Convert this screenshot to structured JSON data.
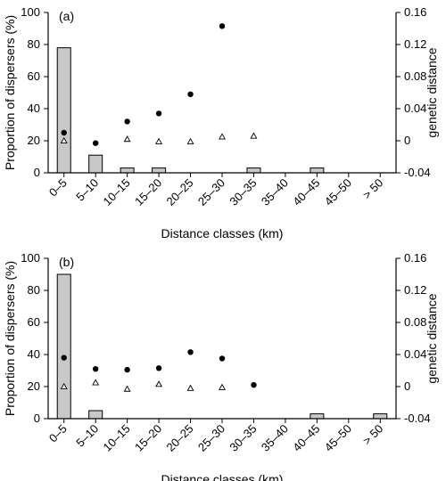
{
  "chart_data": [
    {
      "type": "bar",
      "panel_label": "(a)",
      "categories": [
        "0–5",
        "5–10",
        "10–15",
        "15–20",
        "20–25",
        "25–30",
        "30–35",
        "35–40",
        "40–45",
        "45–50",
        "> 50"
      ],
      "xlabel": "Distance classes (km)",
      "ylabel": "Proportion of dispersers (%)",
      "ylim": [
        0,
        100
      ],
      "yticks": [
        "0",
        "20",
        "40",
        "60",
        "80",
        "100"
      ],
      "y2label": "genetic distance",
      "y2lim": [
        -0.04,
        0.16
      ],
      "y2ticks": [
        "-0.04",
        "0",
        "0.04",
        "0.08",
        "0.12",
        "0.16"
      ],
      "series": [
        {
          "kind": "bar",
          "axis": "left",
          "values": [
            78,
            11,
            3,
            3,
            0,
            0,
            3,
            0,
            3,
            0,
            0
          ]
        },
        {
          "kind": "circle",
          "axis": "right",
          "values": [
            0.01,
            -0.003,
            0.024,
            0.034,
            0.058,
            0.143,
            null,
            null,
            null,
            null,
            null
          ]
        },
        {
          "kind": "triangle",
          "axis": "right",
          "values": [
            0.0,
            null,
            0.002,
            -0.001,
            -0.001,
            0.005,
            0.006,
            null,
            null,
            null,
            null
          ]
        }
      ]
    },
    {
      "type": "bar",
      "panel_label": "(b)",
      "categories": [
        "0–5",
        "5–10",
        "10–15",
        "15–20",
        "20–25",
        "25–30",
        "30–35",
        "35–40",
        "40–45",
        "45–50",
        "> 50"
      ],
      "xlabel": "Distance classes (km)",
      "ylabel": "Proportion of dispersers (%)",
      "ylim": [
        0,
        100
      ],
      "yticks": [
        "0",
        "20",
        "40",
        "60",
        "80",
        "100"
      ],
      "y2label": "genetic distance",
      "y2lim": [
        -0.04,
        0.16
      ],
      "y2ticks": [
        "-0.04",
        "0",
        "0.04",
        "0.08",
        "0.12",
        "0.16"
      ],
      "series": [
        {
          "kind": "bar",
          "axis": "left",
          "values": [
            90,
            5,
            0,
            0,
            0,
            0,
            0,
            0,
            3,
            0,
            3
          ]
        },
        {
          "kind": "circle",
          "axis": "right",
          "values": [
            0.036,
            0.022,
            0.021,
            0.023,
            0.043,
            0.035,
            0.002,
            null,
            null,
            null,
            null
          ]
        },
        {
          "kind": "triangle",
          "axis": "right",
          "values": [
            0.0,
            0.005,
            -0.003,
            0.003,
            -0.002,
            -0.001,
            null,
            null,
            null,
            null,
            null
          ]
        }
      ]
    }
  ]
}
